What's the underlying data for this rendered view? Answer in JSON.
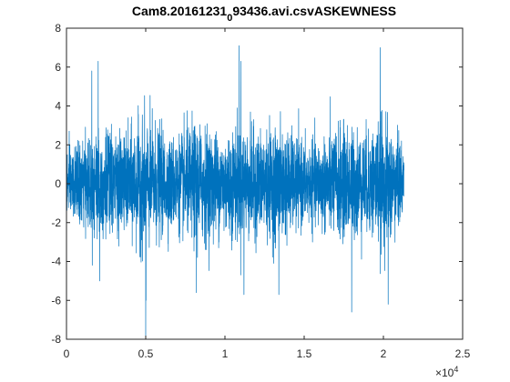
{
  "chart_data": {
    "type": "line",
    "title": {
      "main": "Cam8.20161231",
      "subscript": "0",
      "rest": "93436.avi.csvASKEWNESS"
    },
    "xlabel": "",
    "ylabel": "",
    "xlim": [
      0,
      25000
    ],
    "ylim": [
      -8,
      8
    ],
    "x_tick_labels": [
      "0",
      "0.5",
      "1",
      "1.5",
      "2",
      "2.5"
    ],
    "x_tick_values": [
      0,
      5000,
      10000,
      15000,
      20000,
      25000
    ],
    "x_exponent": {
      "base": "×10",
      "power": "4"
    },
    "y_tick_labels": [
      "-8",
      "-6",
      "-4",
      "-2",
      "0",
      "2",
      "4",
      "6",
      "8"
    ],
    "y_tick_values": [
      -8,
      -6,
      -4,
      -2,
      0,
      2,
      4,
      6,
      8
    ],
    "grid": false,
    "series": [
      {
        "color": "#0072BD",
        "x_range": [
          0,
          21300
        ],
        "n_points": 21300,
        "approx_mean": 0,
        "approx_std": 1.2,
        "extremes": [
          {
            "x": 10900,
            "y": 7.1
          },
          {
            "x": 19800,
            "y": 7.0
          },
          {
            "x": 2000,
            "y": 6.3
          },
          {
            "x": 1600,
            "y": 5.8
          },
          {
            "x": 11000,
            "y": 6.3
          },
          {
            "x": 5000,
            "y": -7.8
          },
          {
            "x": 5020,
            "y": -6.0
          },
          {
            "x": 18000,
            "y": -6.6
          },
          {
            "x": 20300,
            "y": -6.2
          },
          {
            "x": 8200,
            "y": -5.6
          },
          {
            "x": 11200,
            "y": -5.7
          },
          {
            "x": 13400,
            "y": -5.7
          },
          {
            "x": 2100,
            "y": -5.0
          }
        ]
      }
    ]
  }
}
